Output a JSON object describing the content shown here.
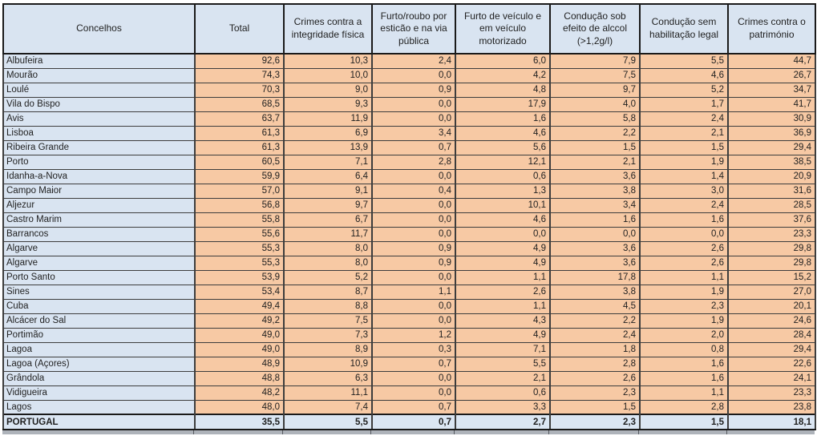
{
  "chart_data": {
    "type": "table",
    "columns": [
      {
        "label": "Concelhos"
      },
      {
        "label": "Total"
      },
      {
        "label": "Crimes contra a integridade física"
      },
      {
        "label": "Furto/roubo por esticão e na via pública"
      },
      {
        "label": "Furto de veículo e em veículo motorizado"
      },
      {
        "label": "Condução sob efeito de alccol (>1,2g/l)"
      },
      {
        "label": "Condução sem habilitação legal"
      },
      {
        "label": "Crimes contra o património"
      }
    ],
    "rows": [
      {
        "name": "Albufeira",
        "values": [
          "92,6",
          "10,3",
          "2,4",
          "6,0",
          "7,9",
          "5,5",
          "44,7"
        ]
      },
      {
        "name": "Mourão",
        "values": [
          "74,3",
          "10,0",
          "0,0",
          "4,2",
          "7,5",
          "4,6",
          "26,7"
        ]
      },
      {
        "name": "Loulé",
        "values": [
          "70,3",
          "9,0",
          "0,9",
          "4,8",
          "9,7",
          "5,2",
          "34,7"
        ]
      },
      {
        "name": "Vila do Bispo",
        "values": [
          "68,5",
          "9,3",
          "0,0",
          "17,9",
          "4,0",
          "1,7",
          "41,7"
        ]
      },
      {
        "name": "Avis",
        "values": [
          "63,7",
          "11,9",
          "0,0",
          "1,6",
          "5,8",
          "2,4",
          "30,9"
        ]
      },
      {
        "name": "Lisboa",
        "values": [
          "61,3",
          "6,9",
          "3,4",
          "4,6",
          "2,2",
          "2,1",
          "36,9"
        ]
      },
      {
        "name": "Ribeira Grande",
        "values": [
          "61,3",
          "13,9",
          "0,7",
          "5,6",
          "1,5",
          "1,5",
          "29,4"
        ]
      },
      {
        "name": "Porto",
        "values": [
          "60,5",
          "7,1",
          "2,8",
          "12,1",
          "2,1",
          "1,9",
          "38,5"
        ]
      },
      {
        "name": "Idanha-a-Nova",
        "values": [
          "59,9",
          "6,4",
          "0,0",
          "0,6",
          "3,6",
          "1,4",
          "20,9"
        ]
      },
      {
        "name": "Campo Maior",
        "values": [
          "57,0",
          "9,1",
          "0,4",
          "1,3",
          "3,8",
          "3,0",
          "31,6"
        ]
      },
      {
        "name": "Aljezur",
        "values": [
          "56,8",
          "9,7",
          "0,0",
          "10,1",
          "3,4",
          "2,4",
          "28,5"
        ]
      },
      {
        "name": "Castro Marim",
        "values": [
          "55,8",
          "6,7",
          "0,0",
          "4,6",
          "1,6",
          "1,6",
          "37,6"
        ]
      },
      {
        "name": "Barrancos",
        "values": [
          "55,6",
          "11,7",
          "0,0",
          "0,0",
          "0,0",
          "0,0",
          "23,3"
        ]
      },
      {
        "name": "Algarve",
        "values": [
          "55,3",
          "8,0",
          "0,9",
          "4,9",
          "3,6",
          "2,6",
          "29,8"
        ]
      },
      {
        "name": "Algarve",
        "values": [
          "55,3",
          "8,0",
          "0,9",
          "4,9",
          "3,6",
          "2,6",
          "29,8"
        ]
      },
      {
        "name": "Porto Santo",
        "values": [
          "53,9",
          "5,2",
          "0,0",
          "1,1",
          "17,8",
          "1,1",
          "15,2"
        ]
      },
      {
        "name": "Sines",
        "values": [
          "53,4",
          "8,7",
          "1,1",
          "2,6",
          "3,8",
          "1,9",
          "27,0"
        ]
      },
      {
        "name": "Cuba",
        "values": [
          "49,4",
          "8,8",
          "0,0",
          "1,1",
          "4,5",
          "2,3",
          "20,1"
        ]
      },
      {
        "name": "Alcácer do Sal",
        "values": [
          "49,2",
          "7,5",
          "0,0",
          "4,3",
          "2,2",
          "1,9",
          "24,6"
        ]
      },
      {
        "name": "Portimão",
        "values": [
          "49,0",
          "7,3",
          "1,2",
          "4,9",
          "2,4",
          "2,0",
          "28,4"
        ]
      },
      {
        "name": "Lagoa",
        "values": [
          "49,0",
          "8,9",
          "0,3",
          "7,1",
          "1,8",
          "0,8",
          "29,4"
        ]
      },
      {
        "name": "Lagoa (Açores)",
        "values": [
          "48,9",
          "10,9",
          "0,7",
          "5,5",
          "2,8",
          "1,6",
          "22,6"
        ]
      },
      {
        "name": "Grândola",
        "values": [
          "48,8",
          "6,3",
          "0,0",
          "2,1",
          "2,6",
          "1,6",
          "24,1"
        ]
      },
      {
        "name": "Vidigueira",
        "values": [
          "48,2",
          "11,1",
          "0,0",
          "0,6",
          "2,3",
          "1,1",
          "23,3"
        ]
      },
      {
        "name": "Lagos",
        "values": [
          "48,0",
          "7,4",
          "0,7",
          "3,3",
          "1,5",
          "2,8",
          "23,8"
        ]
      }
    ],
    "footer": {
      "name": "PORTUGAL",
      "values": [
        "35,5",
        "5,5",
        "0,7",
        "2,7",
        "2,3",
        "1,5",
        "18,1"
      ]
    }
  },
  "colors": {
    "header_fill": "#d9e4f1",
    "data_fill": "#f7c9a4",
    "footer_fill": "#dbe6f3",
    "grid_border": "#3d3d3d",
    "outer_border": "#1a1a1a"
  }
}
